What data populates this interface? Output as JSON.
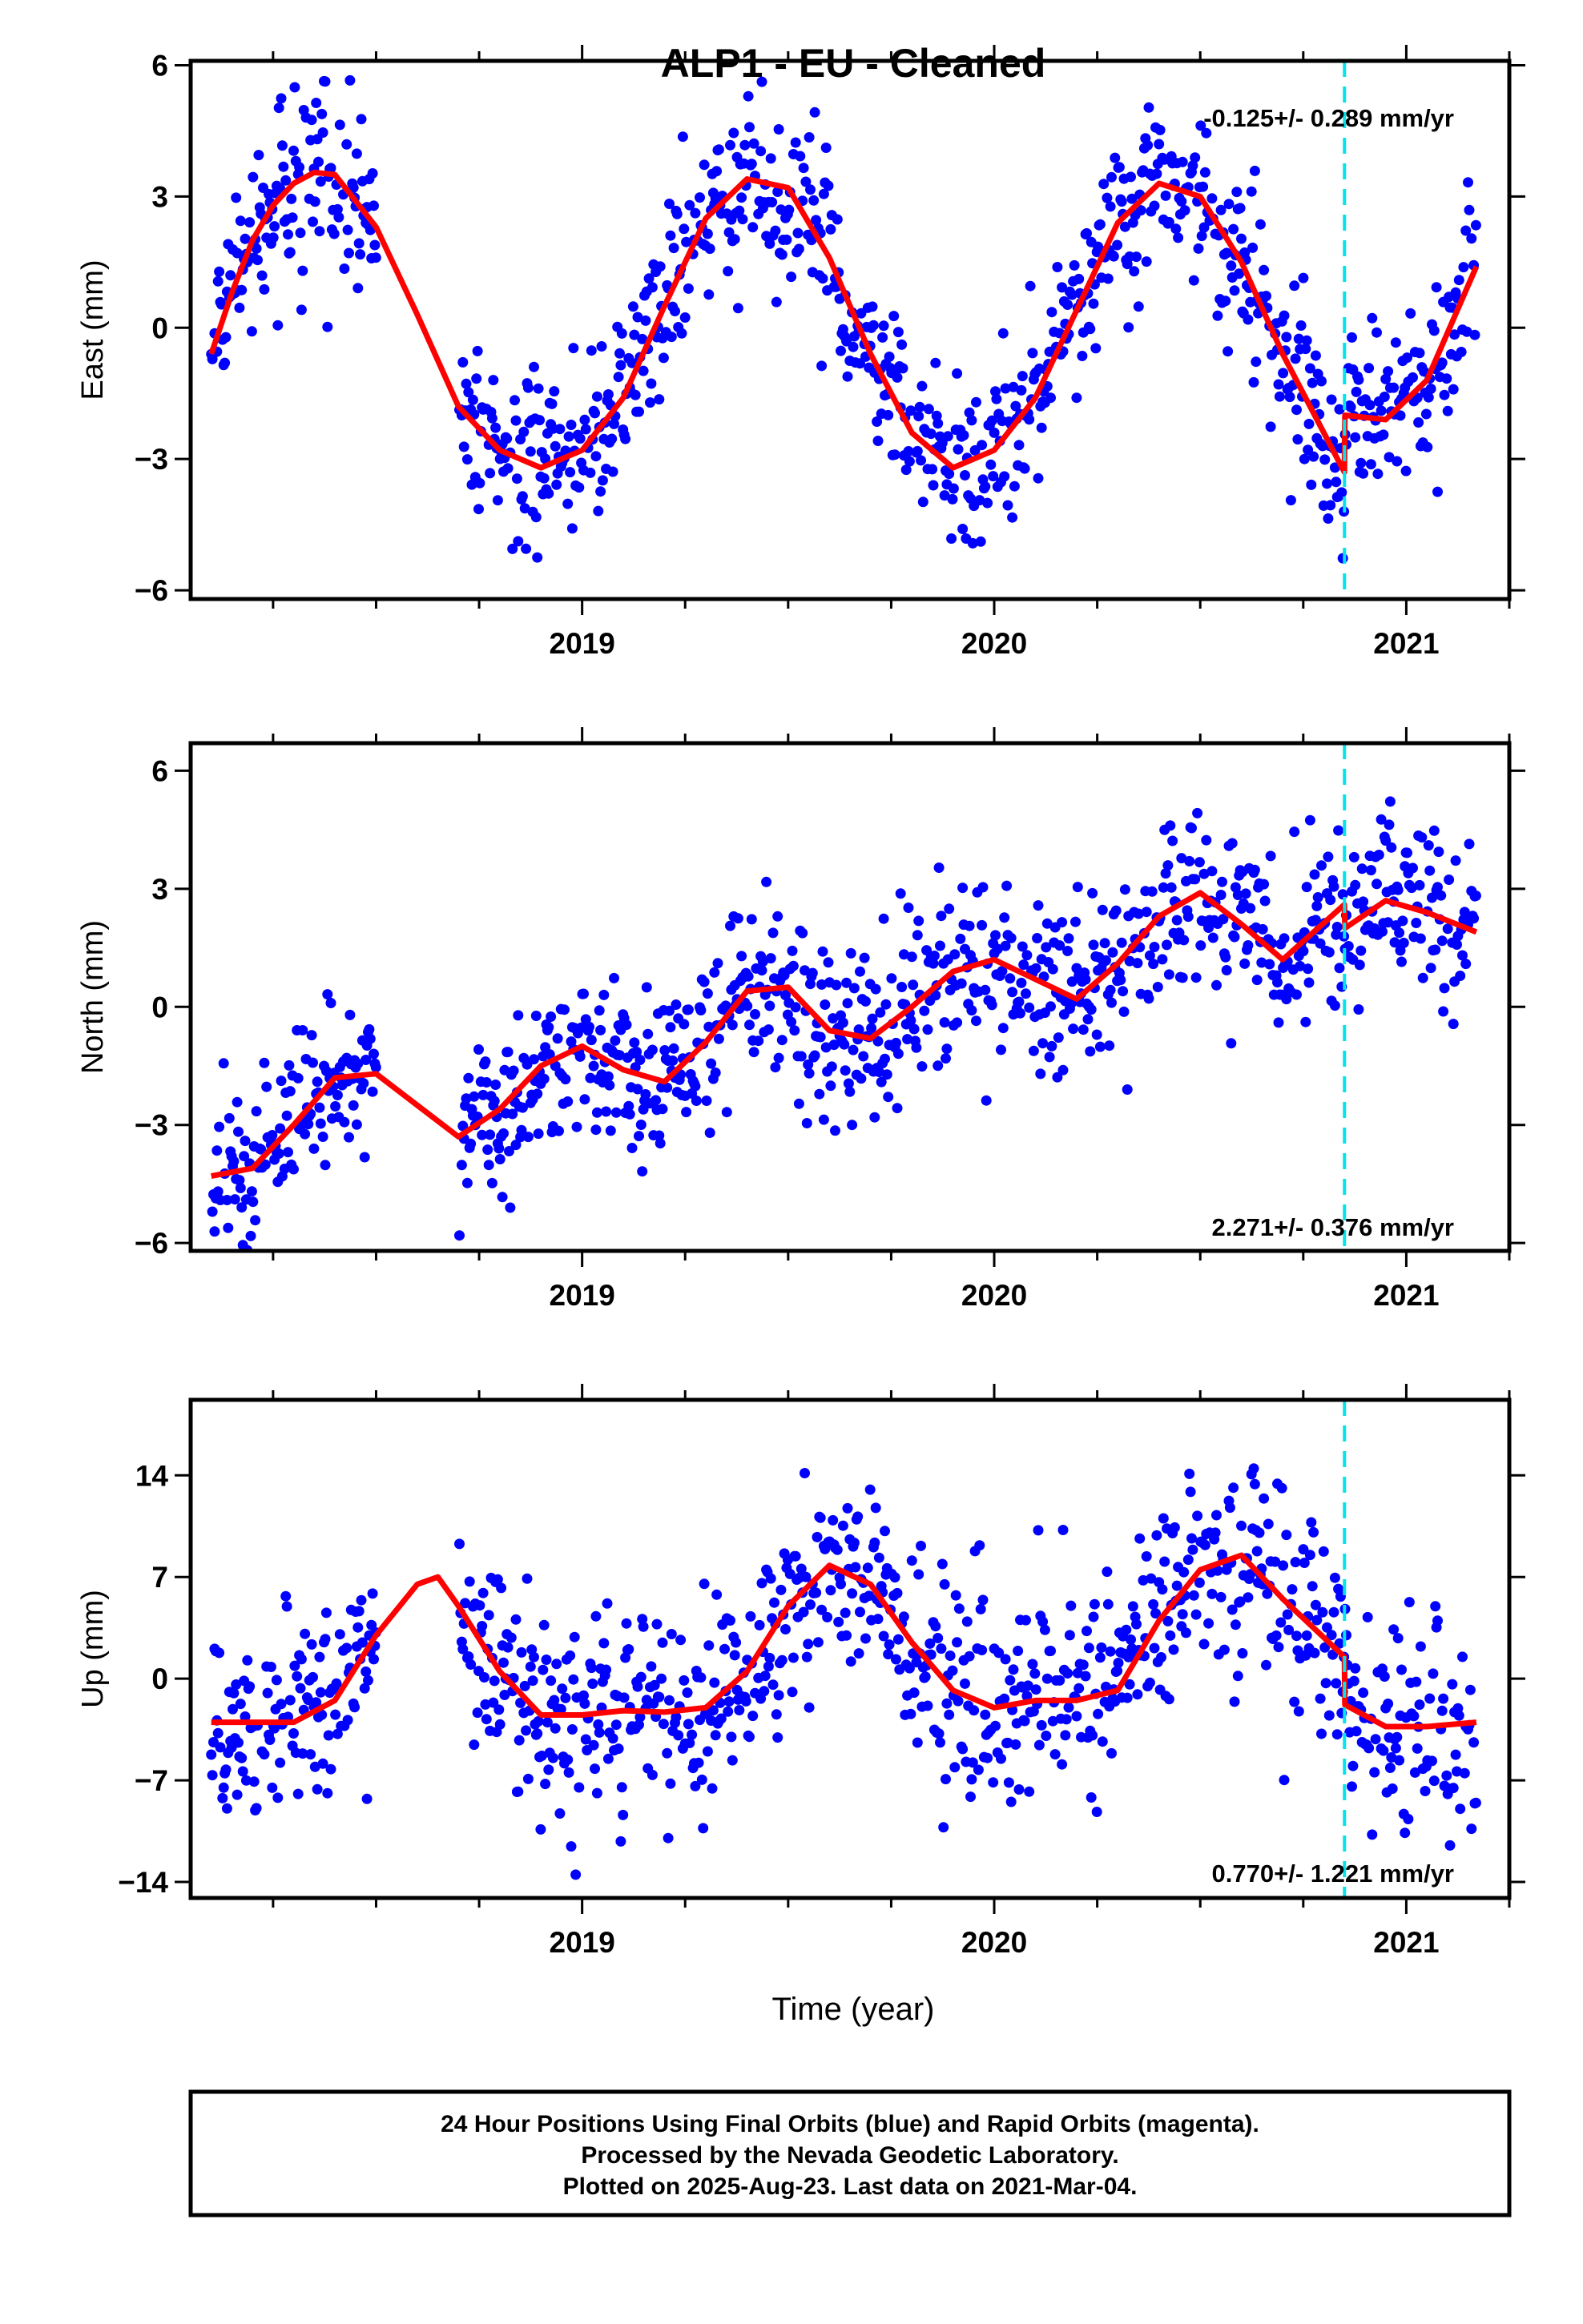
{
  "title": "ALP1  - EU - Cleaned",
  "xlabel": "Time (year)",
  "footer": [
    "24 Hour Positions Using Final Orbits (blue) and Rapid Orbits (magenta).",
    "Processed by the Nevada Geodetic Laboratory.",
    "Plotted on 2025-Aug-23. Last data on 2021-Mar-04."
  ],
  "colors": {
    "data_points": "#0000ff",
    "model_fit": "#ff0000",
    "offset_marker": "#00e5ee"
  },
  "chart_data": [
    {
      "type": "scatter",
      "ylabel": "East (mm)",
      "rate": "-0.125+/- 0.289 mm/yr",
      "xlim": [
        2018.05,
        2021.25
      ],
      "ylim": [
        -6.2,
        6.1
      ],
      "x_ticks": [
        2019,
        2020,
        2021
      ],
      "y_ticks": [
        6,
        3,
        0,
        -3,
        -6
      ],
      "offset_epoch": 2020.85,
      "data_span": [
        2018.1,
        2021.17
      ],
      "series": [
        {
          "name": "",
          "x": [
            2018.1,
            2018.15,
            2018.2,
            2018.25,
            2018.3,
            2018.35,
            2018.4,
            2018.5,
            2018.6,
            2018.7,
            2018.8,
            2018.9,
            2019.0,
            2019.1,
            2019.2,
            2019.3,
            2019.4,
            2019.5,
            2019.6,
            2019.7,
            2019.8,
            2019.9,
            2020.0,
            2020.1,
            2020.2,
            2020.3,
            2020.4,
            2020.5,
            2020.6,
            2020.7,
            2020.85,
            2020.851,
            2020.95,
            2021.05,
            2021.17
          ],
          "y": [
            -0.6,
            0.8,
            2.0,
            2.8,
            3.3,
            3.55,
            3.5,
            2.3,
            0.3,
            -1.8,
            -2.8,
            -3.2,
            -2.8,
            -1.6,
            0.5,
            2.5,
            3.4,
            3.2,
            1.6,
            -0.6,
            -2.4,
            -3.2,
            -2.8,
            -1.6,
            0.4,
            2.4,
            3.3,
            3.0,
            1.5,
            -0.6,
            -3.3,
            -2.0,
            -2.1,
            -1.2,
            1.4
          ],
          "scatter_sd": 1.0
        }
      ]
    },
    {
      "type": "scatter",
      "ylabel": "North (mm)",
      "rate": "2.271+/- 0.376 mm/yr",
      "xlim": [
        2018.05,
        2021.25
      ],
      "ylim": [
        -6.2,
        6.7
      ],
      "x_ticks": [
        2019,
        2020,
        2021
      ],
      "y_ticks": [
        6,
        3,
        0,
        -3,
        -6
      ],
      "offset_epoch": 2020.85,
      "data_span": [
        2018.1,
        2021.17
      ],
      "series": [
        {
          "name": "",
          "x": [
            2018.1,
            2018.2,
            2018.3,
            2018.4,
            2018.5,
            2018.6,
            2018.7,
            2018.8,
            2018.9,
            2019.0,
            2019.1,
            2019.2,
            2019.3,
            2019.4,
            2019.5,
            2019.6,
            2019.7,
            2019.8,
            2019.9,
            2020.0,
            2020.1,
            2020.2,
            2020.3,
            2020.4,
            2020.5,
            2020.6,
            2020.7,
            2020.85,
            2020.851,
            2020.95,
            2021.05,
            2021.17
          ],
          "y": [
            -4.3,
            -4.1,
            -3.0,
            -1.8,
            -1.7,
            -2.5,
            -3.3,
            -2.6,
            -1.5,
            -1.0,
            -1.6,
            -1.9,
            -0.9,
            0.4,
            0.5,
            -0.6,
            -0.8,
            0.0,
            0.9,
            1.2,
            0.7,
            0.2,
            1.1,
            2.3,
            2.9,
            2.1,
            1.2,
            2.6,
            2.0,
            2.7,
            2.4,
            1.9
          ],
          "scatter_sd": 1.1
        }
      ]
    },
    {
      "type": "scatter",
      "ylabel": "Up (mm)",
      "rate": "0.770+/- 1.221 mm/yr",
      "xlim": [
        2018.05,
        2021.25
      ],
      "ylim": [
        -15.1,
        19.2
      ],
      "x_ticks": [
        2019,
        2020,
        2021
      ],
      "y_ticks": [
        14,
        7,
        0,
        -7,
        -14
      ],
      "offset_epoch": 2020.85,
      "data_span": [
        2018.1,
        2021.17
      ],
      "series": [
        {
          "name": "",
          "x": [
            2018.1,
            2018.2,
            2018.3,
            2018.4,
            2018.5,
            2018.6,
            2018.65,
            2018.7,
            2018.8,
            2018.9,
            2019.0,
            2019.1,
            2019.2,
            2019.3,
            2019.4,
            2019.5,
            2019.6,
            2019.7,
            2019.8,
            2019.9,
            2020.0,
            2020.1,
            2020.2,
            2020.3,
            2020.4,
            2020.5,
            2020.6,
            2020.7,
            2020.85,
            2020.851,
            2020.95,
            2021.05,
            2021.17
          ],
          "y": [
            -3.0,
            -3.0,
            -3.0,
            -1.5,
            3.0,
            6.5,
            7.0,
            5.0,
            0.5,
            -2.5,
            -2.5,
            -2.2,
            -2.3,
            -2.0,
            0.5,
            5.0,
            7.8,
            6.5,
            2.5,
            -0.8,
            -2.0,
            -1.5,
            -1.5,
            -0.8,
            4.0,
            7.5,
            8.5,
            5.5,
            1.5,
            -1.8,
            -3.3,
            -3.3,
            -3.0
          ],
          "scatter_sd": 3.6
        }
      ]
    }
  ]
}
